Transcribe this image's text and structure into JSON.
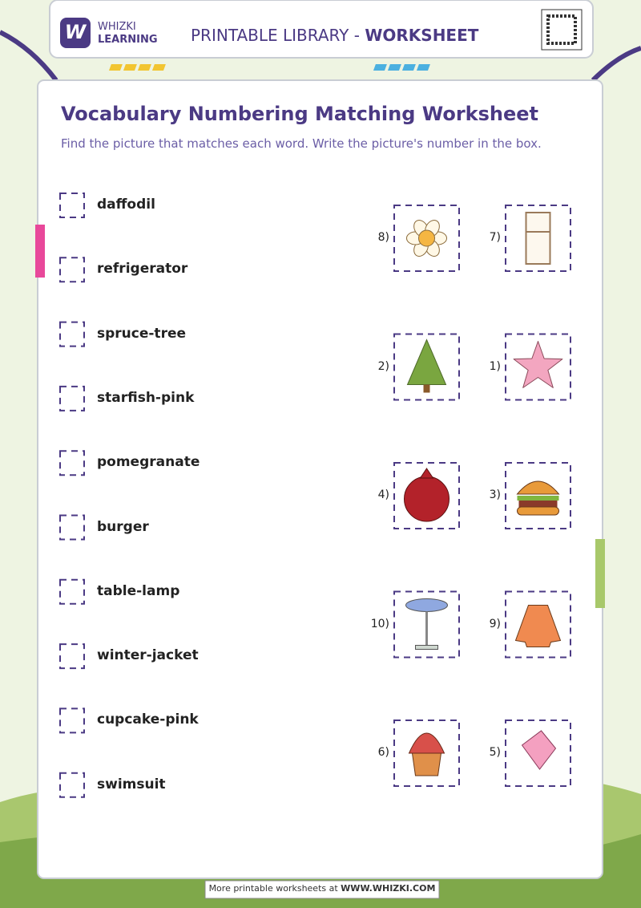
{
  "header": {
    "logo": "W",
    "brand_top": "WHIZKI",
    "brand_bottom": "LEARNING",
    "title_prefix": "PRINTABLE LIBRARY - ",
    "title_bold": "WORKSHEET"
  },
  "title": "Vocabulary Numbering Matching Worksheet",
  "instructions": "Find the picture that matches each word. Write the picture's number in the box.",
  "words": [
    "daffodil",
    "refrigerator",
    "spruce-tree",
    "starfish-pink",
    "pomegranate",
    "burger",
    "table-lamp",
    "winter-jacket",
    "cupcake-pink",
    "swimsuit"
  ],
  "pictures": [
    {
      "label": "8)",
      "item": "daffodil"
    },
    {
      "label": "7)",
      "item": "refrigerator"
    },
    {
      "label": "2)",
      "item": "spruce-tree"
    },
    {
      "label": "1)",
      "item": "starfish"
    },
    {
      "label": "4)",
      "item": "pomegranate"
    },
    {
      "label": "3)",
      "item": "burger"
    },
    {
      "label": "10)",
      "item": "table-lamp"
    },
    {
      "label": "9)",
      "item": "winter-jacket"
    },
    {
      "label": "6)",
      "item": "cupcake"
    },
    {
      "label": "5)",
      "item": "swimsuit"
    }
  ],
  "footer": {
    "text": "More printable worksheets at ",
    "link": "WWW.WHIZKI.COM"
  }
}
